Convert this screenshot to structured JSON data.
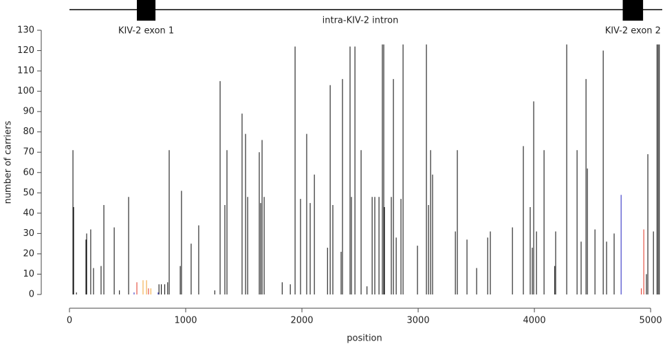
{
  "chart_data": {
    "type": "needle",
    "x_label": "position",
    "y_label": "number of carriers",
    "xlim": [
      0,
      5100
    ],
    "ylim": [
      0,
      130
    ],
    "xticks": [
      0,
      1000,
      2000,
      3000,
      4000,
      5000
    ],
    "yticks": [
      0,
      10,
      20,
      30,
      40,
      50,
      60,
      70,
      80,
      90,
      100,
      110,
      120,
      130
    ],
    "gene_structure": {
      "intron_label": "intra-KIV-2 intron",
      "exons": [
        {
          "label": "KIV-2 exon 1",
          "start": 580,
          "end": 740
        },
        {
          "label": "KIV-2 exon 2",
          "start": 4760,
          "end": 4935
        }
      ]
    },
    "series": [
      {
        "color": "#000000",
        "x": [
          30,
          36,
          60,
          142,
          148,
          183,
          207,
          272,
          296,
          385,
          430,
          509,
          770,
          790,
          820,
          845,
          858,
          953,
          964,
          1047,
          1112,
          1250,
          1296,
          1337,
          1355,
          1485,
          1515,
          1533,
          1633,
          1645,
          1657,
          1675,
          1830,
          1900,
          1941,
          1988,
          2041,
          2071,
          2107,
          2220,
          2243,
          2266,
          2337,
          2349,
          2414,
          2426,
          2456,
          2509,
          2560,
          2604,
          2627,
          2663,
          2692,
          2704,
          2710,
          2769,
          2787,
          2811,
          2852,
          2870,
          2994,
          3071,
          3089,
          3107,
          3124,
          3320,
          3337,
          3420,
          3503,
          3598,
          3621,
          3811,
          3905,
          3964,
          3982,
          3994,
          4018,
          4083,
          4175,
          4183,
          4278,
          4367,
          4402,
          4444,
          4456,
          4521,
          4592,
          4621,
          4686,
          4964,
          4976,
          5024,
          5055,
          5065,
          5075
        ],
        "values": [
          71,
          43,
          1,
          27,
          30,
          32,
          13,
          14,
          44,
          33,
          2,
          48,
          5,
          5,
          5,
          6,
          71,
          14,
          51,
          25,
          34,
          2,
          105,
          44,
          71,
          89,
          79,
          48,
          70,
          45,
          76,
          48,
          6,
          5,
          122,
          47,
          79,
          45,
          59,
          23,
          103,
          44,
          21,
          106,
          122,
          48,
          122,
          71,
          4,
          48,
          48,
          48,
          123,
          123,
          43,
          48,
          106,
          28,
          47,
          123,
          24,
          123,
          44,
          71,
          59,
          31,
          71,
          27,
          13,
          28,
          31,
          33,
          73,
          43,
          23,
          95,
          31,
          71,
          14,
          31,
          123,
          71,
          26,
          106,
          62,
          32,
          120,
          26,
          30,
          10,
          69,
          31,
          123,
          123,
          123
        ]
      },
      {
        "color": "#e0301e",
        "x": [
          580,
          680,
          4920,
          4941
        ],
        "values": [
          6,
          3,
          3,
          32
        ]
      },
      {
        "color": "#f0a030",
        "x": [
          633,
          663,
          700
        ],
        "values": [
          7,
          7,
          3
        ]
      },
      {
        "color": "#2020c0",
        "x": [
          556,
          763,
          4746
        ],
        "values": [
          1,
          1,
          49
        ]
      }
    ]
  }
}
